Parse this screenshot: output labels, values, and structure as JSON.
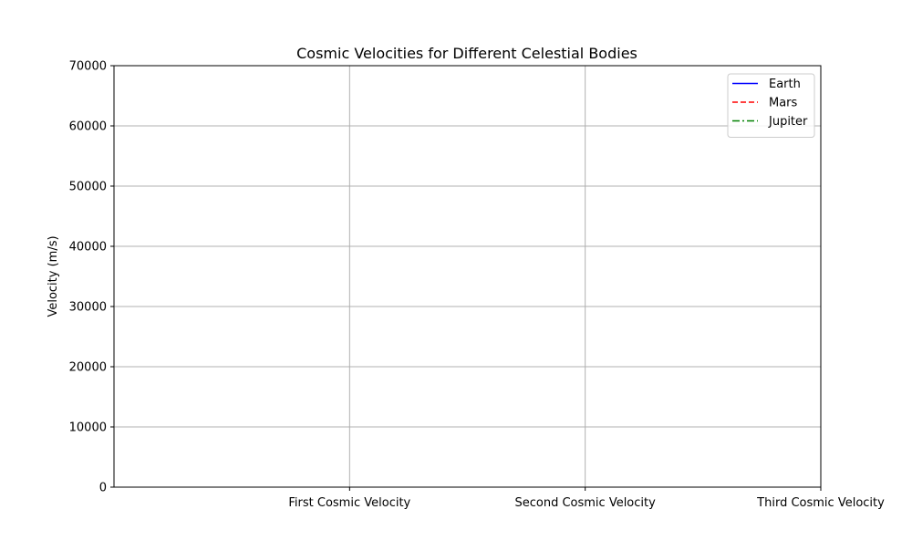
{
  "chart_data": {
    "type": "line",
    "title": "Cosmic Velocities for Different Celestial Bodies",
    "xlabel": "",
    "ylabel": "Velocity (m/s)",
    "categories": [
      "",
      "First Cosmic Velocity",
      "Second Cosmic Velocity",
      "Third Cosmic Velocity"
    ],
    "ylim": [
      0,
      70000
    ],
    "yticks": [
      0,
      10000,
      20000,
      30000,
      40000,
      50000,
      60000,
      70000
    ],
    "grid": true,
    "legend_position": "top-right",
    "series": [
      {
        "name": "Earth",
        "color": "#0000ff",
        "line_style": "solid",
        "values": [
          null,
          null,
          null,
          null
        ]
      },
      {
        "name": "Mars",
        "color": "#ff0000",
        "line_style": "dashed",
        "values": [
          null,
          null,
          null,
          null
        ]
      },
      {
        "name": "Jupiter",
        "color": "#008000",
        "line_style": "dash-dot",
        "values": [
          null,
          null,
          null,
          null
        ]
      }
    ]
  }
}
